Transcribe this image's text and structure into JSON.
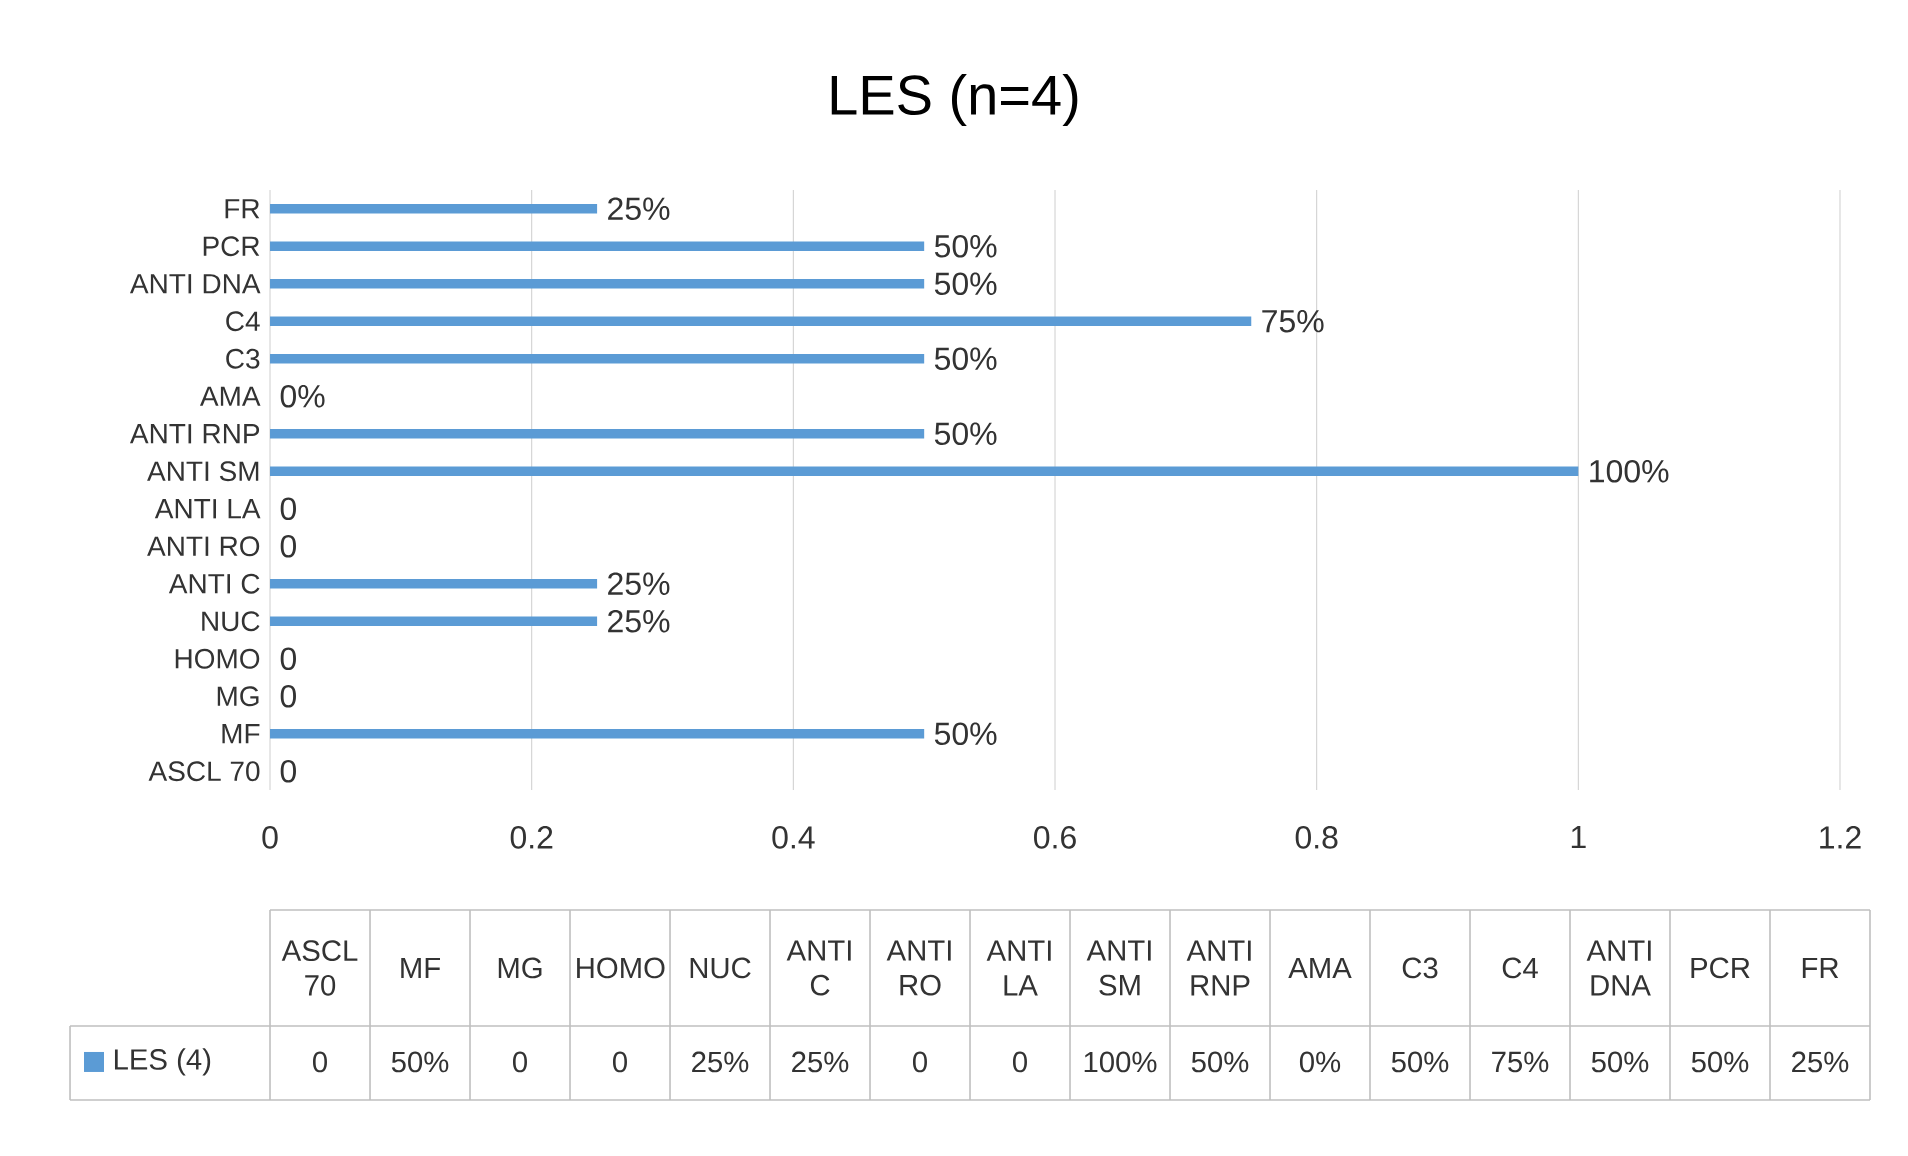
{
  "chart_data": {
    "type": "bar",
    "orientation": "horizontal",
    "title": "LES (n=4)",
    "categories": [
      "FR",
      "PCR",
      "ANTI DNA",
      "C4",
      "C3",
      "AMA",
      "ANTI RNP",
      "ANTI SM",
      "ANTI LA",
      "ANTI RO",
      "ANTI C",
      "NUC",
      "HOMO",
      "MG",
      "MF",
      "ASCL 70"
    ],
    "series": [
      {
        "name": "LES (4)",
        "color": "#5b9bd5",
        "values": [
          0.25,
          0.5,
          0.5,
          0.75,
          0.5,
          0,
          0.5,
          1,
          0,
          0,
          0.25,
          0.25,
          0,
          0,
          0.5,
          0
        ],
        "value_labels": [
          "25%",
          "50%",
          "50%",
          "75%",
          "50%",
          "0%",
          "50%",
          "100%",
          "0",
          "0",
          "25%",
          "25%",
          "0",
          "0",
          "50%",
          "0"
        ]
      }
    ],
    "xlim": [
      0,
      1.2
    ],
    "xticks": [
      0,
      0.2,
      0.4,
      0.6,
      0.8,
      1,
      1.2
    ],
    "grid": "x",
    "legend": "bottom"
  }
}
